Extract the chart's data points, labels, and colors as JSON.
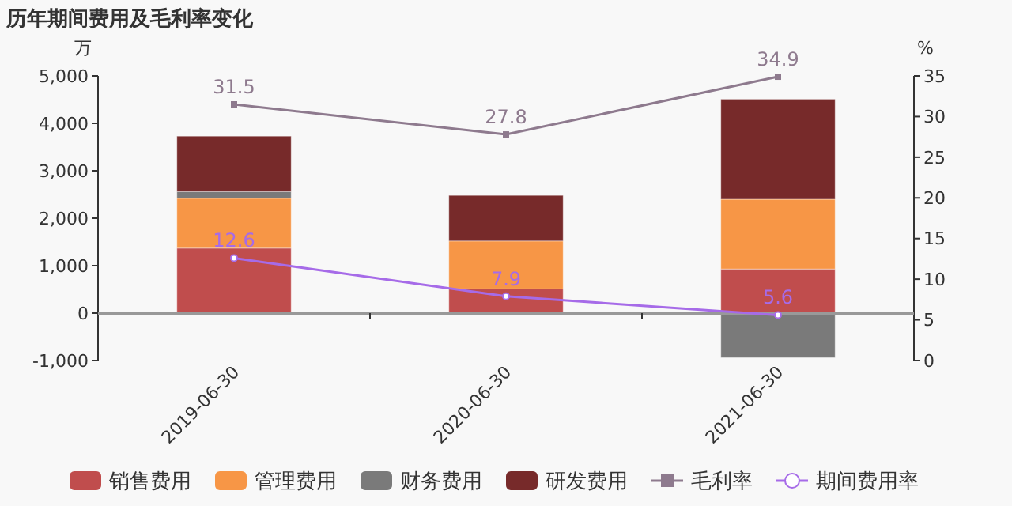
{
  "chart_data": {
    "type": "bar",
    "title": "历年期间费用及毛利率变化",
    "ylabel": "万",
    "y2label": "%",
    "categories": [
      "2019-06-30",
      "2020-06-30",
      "2021-06-30"
    ],
    "stacked": true,
    "legend": "bottom",
    "series": [
      {
        "name": "销售费用",
        "color": "#c04d4d",
        "values": [
          1370,
          510,
          930
        ]
      },
      {
        "name": "管理费用",
        "color": "#f79646",
        "values": [
          1050,
          1010,
          1470
        ]
      },
      {
        "name": "财务费用",
        "color": "#7a7a7a",
        "values": [
          140,
          null,
          -940
        ]
      },
      {
        "name": "研发费用",
        "color": "#772a2a",
        "values": [
          1170,
          960,
          2110
        ]
      },
      {
        "name": "毛利率",
        "type": "line",
        "axis": "y2",
        "marker": "square",
        "color": "#8e7a8e",
        "values": [
          31.5,
          27.8,
          34.9
        ],
        "value_labels": [
          "31.5",
          "27.8",
          "34.9"
        ]
      },
      {
        "name": "期间费用率",
        "type": "line",
        "axis": "y2",
        "marker": "circle",
        "color": "#a66be8",
        "values": [
          12.6,
          7.9,
          5.6
        ],
        "value_labels": [
          "12.6",
          "7.9",
          "5.6"
        ]
      }
    ],
    "ylim": [
      -1000,
      5000
    ],
    "yticks": [
      {
        "value": -1000,
        "label": "-1,000"
      },
      0,
      {
        "value": 1000,
        "label": "1,000"
      },
      {
        "value": 2000,
        "label": "2,000"
      },
      {
        "value": 3000,
        "label": "3,000"
      },
      {
        "value": 4000,
        "label": "4,000"
      },
      {
        "value": 5000,
        "label": "5,000"
      }
    ],
    "y2lim": [
      0,
      35
    ],
    "y2ticks": [
      0,
      5,
      10,
      15,
      20,
      25,
      30,
      35
    ]
  }
}
